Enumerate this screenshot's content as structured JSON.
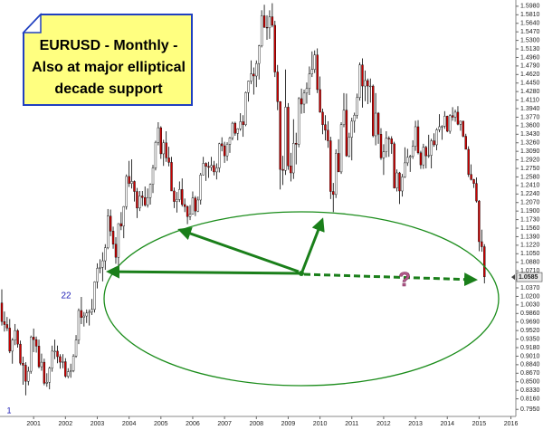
{
  "chart_data": {
    "type": "candlestick",
    "title_lines": [
      "EURUSD - Monthly -",
      "Also at major elliptical",
      "decade support"
    ],
    "annotations": {
      "wave_1": "1",
      "wave_22": "22",
      "question": "?"
    },
    "last_price": {
      "value": 1.0585,
      "label": "1.0585"
    },
    "up_color": "#ffffff",
    "down_color": "#cc0000",
    "ylim": [
      0.79,
      1.605
    ],
    "yticks": [
      {
        "value": 0.795,
        "label": "0.7950"
      },
      {
        "value": 0.816,
        "label": "0.8160"
      },
      {
        "value": 0.833,
        "label": "0.8330"
      },
      {
        "value": 0.85,
        "label": "0.8500"
      },
      {
        "value": 0.867,
        "label": "0.8670"
      },
      {
        "value": 0.884,
        "label": "0.8840"
      },
      {
        "value": 0.901,
        "label": "0.9010"
      },
      {
        "value": 0.918,
        "label": "0.9180"
      },
      {
        "value": 0.935,
        "label": "0.9350"
      },
      {
        "value": 0.952,
        "label": "0.9520"
      },
      {
        "value": 0.969,
        "label": "0.9690"
      },
      {
        "value": 0.986,
        "label": "0.9860"
      },
      {
        "value": 1.003,
        "label": "1.0030"
      },
      {
        "value": 1.02,
        "label": "1.0200"
      },
      {
        "value": 1.037,
        "label": "1.0370"
      },
      {
        "value": 1.054,
        "label": "1.0540"
      },
      {
        "value": 1.071,
        "label": "1.0710"
      },
      {
        "value": 1.088,
        "label": "1.0880"
      },
      {
        "value": 1.105,
        "label": "1.1050"
      },
      {
        "value": 1.122,
        "label": "1.1220"
      },
      {
        "value": 1.139,
        "label": "1.1390"
      },
      {
        "value": 1.156,
        "label": "1.1560"
      },
      {
        "value": 1.173,
        "label": "1.1730"
      },
      {
        "value": 1.19,
        "label": "1.1900"
      },
      {
        "value": 1.207,
        "label": "1.2070"
      },
      {
        "value": 1.224,
        "label": "1.2240"
      },
      {
        "value": 1.241,
        "label": "1.2410"
      },
      {
        "value": 1.258,
        "label": "1.2580"
      },
      {
        "value": 1.275,
        "label": "1.2750"
      },
      {
        "value": 1.292,
        "label": "1.2920"
      },
      {
        "value": 1.309,
        "label": "1.3090"
      },
      {
        "value": 1.326,
        "label": "1.3260"
      },
      {
        "value": 1.343,
        "label": "1.3430"
      },
      {
        "value": 1.36,
        "label": "1.3600"
      },
      {
        "value": 1.377,
        "label": "1.3770"
      },
      {
        "value": 1.394,
        "label": "1.3940"
      },
      {
        "value": 1.411,
        "label": "1.4110"
      },
      {
        "value": 1.428,
        "label": "1.4280"
      },
      {
        "value": 1.445,
        "label": "1.4450"
      },
      {
        "value": 1.462,
        "label": "1.4620"
      },
      {
        "value": 1.479,
        "label": "1.4790"
      },
      {
        "value": 1.496,
        "label": "1.4960"
      },
      {
        "value": 1.513,
        "label": "1.5130"
      },
      {
        "value": 1.53,
        "label": "1.5300"
      },
      {
        "value": 1.547,
        "label": "1.5470"
      },
      {
        "value": 1.564,
        "label": "1.5640"
      },
      {
        "value": 1.581,
        "label": "1.5810"
      },
      {
        "value": 1.598,
        "label": "1.5980"
      }
    ],
    "categories": [
      null,
      null,
      null,
      null,
      null,
      null,
      null,
      null,
      null,
      null,
      null,
      null,
      "2001",
      null,
      null,
      null,
      null,
      null,
      null,
      null,
      null,
      null,
      null,
      null,
      "2002",
      null,
      null,
      null,
      null,
      null,
      null,
      null,
      null,
      null,
      null,
      null,
      "2003",
      null,
      null,
      null,
      null,
      null,
      null,
      null,
      null,
      null,
      null,
      null,
      "2004",
      null,
      null,
      null,
      null,
      null,
      null,
      null,
      null,
      null,
      null,
      null,
      "2005",
      null,
      null,
      null,
      null,
      null,
      null,
      null,
      null,
      null,
      null,
      null,
      "2006",
      null,
      null,
      null,
      null,
      null,
      null,
      null,
      null,
      null,
      null,
      null,
      "2007",
      null,
      null,
      null,
      null,
      null,
      null,
      null,
      null,
      null,
      null,
      null,
      "2008",
      null,
      null,
      null,
      null,
      null,
      null,
      null,
      null,
      null,
      null,
      null,
      "2009",
      null,
      null,
      null,
      null,
      null,
      null,
      null,
      null,
      null,
      null,
      null,
      "2010",
      null,
      null,
      null,
      null,
      null,
      null,
      null,
      null,
      null,
      null,
      null,
      "2011",
      null,
      null,
      null,
      null,
      null,
      null,
      null,
      null,
      null,
      null,
      null,
      "2012",
      null,
      null,
      null,
      null,
      null,
      null,
      null,
      null,
      null,
      null,
      null,
      "2013",
      null,
      null,
      null,
      null,
      null,
      null,
      null,
      null,
      null,
      null,
      null,
      "2014",
      null,
      null,
      null,
      null,
      null,
      null,
      null,
      null,
      null,
      null,
      null,
      "2015",
      null,
      null,
      null,
      null,
      null,
      null,
      null,
      null,
      null,
      null,
      null,
      "2016"
    ],
    "candles": [
      [
        1.007,
        1.034,
        0.962,
        0.97
      ],
      [
        0.97,
        0.99,
        0.95,
        0.964
      ],
      [
        0.964,
        0.979,
        0.951,
        0.957
      ],
      [
        0.957,
        0.975,
        0.907,
        0.911
      ],
      [
        0.911,
        0.937,
        0.886,
        0.933
      ],
      [
        0.933,
        0.965,
        0.923,
        0.952
      ],
      [
        0.952,
        0.955,
        0.918,
        0.925
      ],
      [
        0.925,
        0.932,
        0.883,
        0.887
      ],
      [
        0.887,
        0.9,
        0.844,
        0.883
      ],
      [
        0.883,
        0.889,
        0.823,
        0.851
      ],
      [
        0.851,
        0.88,
        0.843,
        0.871
      ],
      [
        0.871,
        0.942,
        0.866,
        0.939
      ],
      [
        0.939,
        0.956,
        0.909,
        0.934
      ],
      [
        0.934,
        0.94,
        0.908,
        0.921
      ],
      [
        0.921,
        0.934,
        0.877,
        0.88
      ],
      [
        0.88,
        0.906,
        0.872,
        0.889
      ],
      [
        0.889,
        0.896,
        0.843,
        0.847
      ],
      [
        0.847,
        0.867,
        0.84,
        0.849
      ],
      [
        0.849,
        0.88,
        0.835,
        0.877
      ],
      [
        0.877,
        0.922,
        0.87,
        0.911
      ],
      [
        0.911,
        0.934,
        0.895,
        0.911
      ],
      [
        0.911,
        0.922,
        0.887,
        0.9
      ],
      [
        0.9,
        0.905,
        0.876,
        0.889
      ],
      [
        0.889,
        0.905,
        0.877,
        0.89
      ],
      [
        0.89,
        0.897,
        0.858,
        0.861
      ],
      [
        0.861,
        0.877,
        0.857,
        0.87
      ],
      [
        0.87,
        0.886,
        0.858,
        0.872
      ],
      [
        0.872,
        0.905,
        0.869,
        0.901
      ],
      [
        0.901,
        0.943,
        0.898,
        0.933
      ],
      [
        0.933,
        0.996,
        0.925,
        0.992
      ],
      [
        0.992,
        1.019,
        0.965,
        0.978
      ],
      [
        0.978,
        0.989,
        0.96,
        0.981
      ],
      [
        0.981,
        0.994,
        0.967,
        0.987
      ],
      [
        0.987,
        0.994,
        0.962,
        0.989
      ],
      [
        0.989,
        1.015,
        0.983,
        0.994
      ],
      [
        0.994,
        1.05,
        0.988,
        1.049
      ],
      [
        1.049,
        1.086,
        1.036,
        1.076
      ],
      [
        1.076,
        1.094,
        1.066,
        1.078
      ],
      [
        1.078,
        1.108,
        1.05,
        1.091
      ],
      [
        1.091,
        1.124,
        1.073,
        1.117
      ],
      [
        1.117,
        1.194,
        1.114,
        1.18
      ],
      [
        1.18,
        1.193,
        1.14,
        1.15
      ],
      [
        1.15,
        1.159,
        1.115,
        1.124
      ],
      [
        1.124,
        1.138,
        1.085,
        1.098
      ],
      [
        1.098,
        1.166,
        1.077,
        1.165
      ],
      [
        1.165,
        1.188,
        1.152,
        1.16
      ],
      [
        1.16,
        1.2,
        1.136,
        1.199
      ],
      [
        1.199,
        1.263,
        1.193,
        1.259
      ],
      [
        1.259,
        1.29,
        1.238,
        1.245
      ],
      [
        1.245,
        1.293,
        1.235,
        1.249
      ],
      [
        1.249,
        1.251,
        1.209,
        1.229
      ],
      [
        1.229,
        1.236,
        1.176,
        1.196
      ],
      [
        1.196,
        1.23,
        1.19,
        1.22
      ],
      [
        1.22,
        1.23,
        1.2,
        1.217
      ],
      [
        1.217,
        1.239,
        1.199,
        1.202
      ],
      [
        1.202,
        1.235,
        1.197,
        1.217
      ],
      [
        1.217,
        1.245,
        1.203,
        1.243
      ],
      [
        1.243,
        1.282,
        1.226,
        1.276
      ],
      [
        1.276,
        1.33,
        1.271,
        1.327
      ],
      [
        1.327,
        1.367,
        1.321,
        1.356
      ],
      [
        1.356,
        1.359,
        1.294,
        1.304
      ],
      [
        1.304,
        1.332,
        1.28,
        1.326
      ],
      [
        1.326,
        1.349,
        1.288,
        1.296
      ],
      [
        1.296,
        1.318,
        1.279,
        1.287
      ],
      [
        1.287,
        1.298,
        1.23,
        1.23
      ],
      [
        1.23,
        1.237,
        1.196,
        1.209
      ],
      [
        1.209,
        1.228,
        1.187,
        1.213
      ],
      [
        1.213,
        1.249,
        1.208,
        1.233
      ],
      [
        1.233,
        1.255,
        1.199,
        1.203
      ],
      [
        1.203,
        1.215,
        1.188,
        1.199
      ],
      [
        1.199,
        1.201,
        1.164,
        1.179
      ],
      [
        1.179,
        1.202,
        1.172,
        1.184
      ],
      [
        1.184,
        1.229,
        1.183,
        1.216
      ],
      [
        1.216,
        1.22,
        1.18,
        1.19
      ],
      [
        1.19,
        1.219,
        1.188,
        1.212
      ],
      [
        1.212,
        1.266,
        1.203,
        1.262
      ],
      [
        1.262,
        1.298,
        1.261,
        1.285
      ],
      [
        1.285,
        1.287,
        1.25,
        1.279
      ],
      [
        1.279,
        1.288,
        1.256,
        1.277
      ],
      [
        1.277,
        1.298,
        1.27,
        1.281
      ],
      [
        1.281,
        1.29,
        1.261,
        1.268
      ],
      [
        1.268,
        1.285,
        1.253,
        1.276
      ],
      [
        1.276,
        1.326,
        1.267,
        1.324
      ],
      [
        1.324,
        1.337,
        1.309,
        1.32
      ],
      [
        1.32,
        1.328,
        1.286,
        1.3
      ],
      [
        1.3,
        1.327,
        1.29,
        1.323
      ],
      [
        1.323,
        1.338,
        1.306,
        1.336
      ],
      [
        1.336,
        1.368,
        1.331,
        1.365
      ],
      [
        1.365,
        1.368,
        1.34,
        1.345
      ],
      [
        1.345,
        1.355,
        1.331,
        1.354
      ],
      [
        1.354,
        1.385,
        1.35,
        1.368
      ],
      [
        1.368,
        1.381,
        1.338,
        1.362
      ],
      [
        1.362,
        1.428,
        1.359,
        1.426
      ],
      [
        1.426,
        1.45,
        1.408,
        1.449
      ],
      [
        1.449,
        1.49,
        1.443,
        1.463
      ],
      [
        1.463,
        1.476,
        1.422,
        1.459
      ],
      [
        1.459,
        1.49,
        1.437,
        1.484
      ],
      [
        1.484,
        1.521,
        1.452,
        1.519
      ],
      [
        1.519,
        1.59,
        1.516,
        1.579
      ],
      [
        1.579,
        1.601,
        1.555,
        1.556
      ],
      [
        1.556,
        1.58,
        1.531,
        1.555
      ],
      [
        1.555,
        1.59,
        1.533,
        1.577
      ],
      [
        1.577,
        1.604,
        1.556,
        1.56
      ],
      [
        1.56,
        1.569,
        1.457,
        1.467
      ],
      [
        1.467,
        1.481,
        1.391,
        1.408
      ],
      [
        1.408,
        1.409,
        1.233,
        1.273
      ],
      [
        1.273,
        1.3,
        1.242,
        1.271
      ],
      [
        1.271,
        1.472,
        1.262,
        1.397
      ],
      [
        1.397,
        1.405,
        1.272,
        1.28
      ],
      [
        1.28,
        1.306,
        1.249,
        1.266
      ],
      [
        1.266,
        1.373,
        1.254,
        1.325
      ],
      [
        1.325,
        1.346,
        1.283,
        1.323
      ],
      [
        1.323,
        1.417,
        1.317,
        1.414
      ],
      [
        1.414,
        1.434,
        1.384,
        1.403
      ],
      [
        1.403,
        1.432,
        1.385,
        1.425
      ],
      [
        1.425,
        1.446,
        1.404,
        1.434
      ],
      [
        1.434,
        1.478,
        1.421,
        1.463
      ],
      [
        1.463,
        1.508,
        1.457,
        1.472
      ],
      [
        1.472,
        1.51,
        1.465,
        1.501
      ],
      [
        1.501,
        1.514,
        1.425,
        1.432
      ],
      [
        1.432,
        1.458,
        1.386,
        1.387
      ],
      [
        1.387,
        1.394,
        1.343,
        1.362
      ],
      [
        1.362,
        1.381,
        1.331,
        1.351
      ],
      [
        1.351,
        1.369,
        1.316,
        1.33
      ],
      [
        1.33,
        1.338,
        1.214,
        1.229
      ],
      [
        1.229,
        1.246,
        1.188,
        1.223
      ],
      [
        1.223,
        1.313,
        1.216,
        1.305
      ],
      [
        1.305,
        1.333,
        1.268,
        1.268
      ],
      [
        1.268,
        1.367,
        1.264,
        1.362
      ],
      [
        1.362,
        1.425,
        1.357,
        1.391
      ],
      [
        1.391,
        1.424,
        1.298,
        1.3
      ],
      [
        1.3,
        1.346,
        1.297,
        1.337
      ],
      [
        1.337,
        1.376,
        1.291,
        1.369
      ],
      [
        1.369,
        1.386,
        1.346,
        1.381
      ],
      [
        1.381,
        1.424,
        1.374,
        1.416
      ],
      [
        1.416,
        1.486,
        1.41,
        1.481
      ],
      [
        1.481,
        1.494,
        1.396,
        1.439
      ],
      [
        1.439,
        1.47,
        1.409,
        1.45
      ],
      [
        1.45,
        1.454,
        1.403,
        1.439
      ],
      [
        1.439,
        1.454,
        1.406,
        1.439
      ],
      [
        1.439,
        1.442,
        1.337,
        1.34
      ],
      [
        1.34,
        1.425,
        1.321,
        1.385
      ],
      [
        1.385,
        1.387,
        1.324,
        1.343
      ],
      [
        1.343,
        1.355,
        1.292,
        1.296
      ],
      [
        1.296,
        1.323,
        1.262,
        1.308
      ],
      [
        1.308,
        1.349,
        1.297,
        1.335
      ],
      [
        1.335,
        1.339,
        1.298,
        1.334
      ],
      [
        1.334,
        1.339,
        1.304,
        1.324
      ],
      [
        1.324,
        1.328,
        1.235,
        1.236
      ],
      [
        1.236,
        1.273,
        1.229,
        1.266
      ],
      [
        1.266,
        1.268,
        1.204,
        1.23
      ],
      [
        1.23,
        1.264,
        1.219,
        1.258
      ],
      [
        1.258,
        1.317,
        1.256,
        1.286
      ],
      [
        1.286,
        1.314,
        1.28,
        1.297
      ],
      [
        1.297,
        1.302,
        1.268,
        1.299
      ],
      [
        1.299,
        1.331,
        1.294,
        1.319
      ],
      [
        1.319,
        1.37,
        1.31,
        1.358
      ],
      [
        1.358,
        1.371,
        1.303,
        1.306
      ],
      [
        1.306,
        1.31,
        1.274,
        1.282
      ],
      [
        1.282,
        1.324,
        1.274,
        1.317
      ],
      [
        1.317,
        1.32,
        1.275,
        1.3
      ],
      [
        1.3,
        1.342,
        1.296,
        1.301
      ],
      [
        1.301,
        1.334,
        1.275,
        1.33
      ],
      [
        1.33,
        1.345,
        1.318,
        1.322
      ],
      [
        1.322,
        1.355,
        1.311,
        1.352
      ],
      [
        1.352,
        1.383,
        1.347,
        1.358
      ],
      [
        1.358,
        1.361,
        1.332,
        1.359
      ],
      [
        1.359,
        1.389,
        1.354,
        1.379
      ],
      [
        1.379,
        1.38,
        1.347,
        1.349
      ],
      [
        1.349,
        1.383,
        1.344,
        1.38
      ],
      [
        1.38,
        1.397,
        1.37,
        1.377
      ],
      [
        1.377,
        1.392,
        1.368,
        1.387
      ],
      [
        1.387,
        1.399,
        1.361,
        1.363
      ],
      [
        1.363,
        1.37,
        1.35,
        1.369
      ],
      [
        1.369,
        1.37,
        1.337,
        1.339
      ],
      [
        1.339,
        1.344,
        1.313,
        1.313
      ],
      [
        1.313,
        1.319,
        1.258,
        1.263
      ],
      [
        1.263,
        1.283,
        1.251,
        1.253
      ],
      [
        1.253,
        1.254,
        1.236,
        1.245
      ],
      [
        1.245,
        1.257,
        1.207,
        1.21
      ],
      [
        1.21,
        1.212,
        1.11,
        1.129
      ],
      [
        1.129,
        1.153,
        1.109,
        1.119
      ],
      [
        1.119,
        1.124,
        1.046,
        1.059
      ],
      null,
      null,
      null,
      null,
      null,
      null,
      null,
      null,
      null,
      null
    ]
  }
}
